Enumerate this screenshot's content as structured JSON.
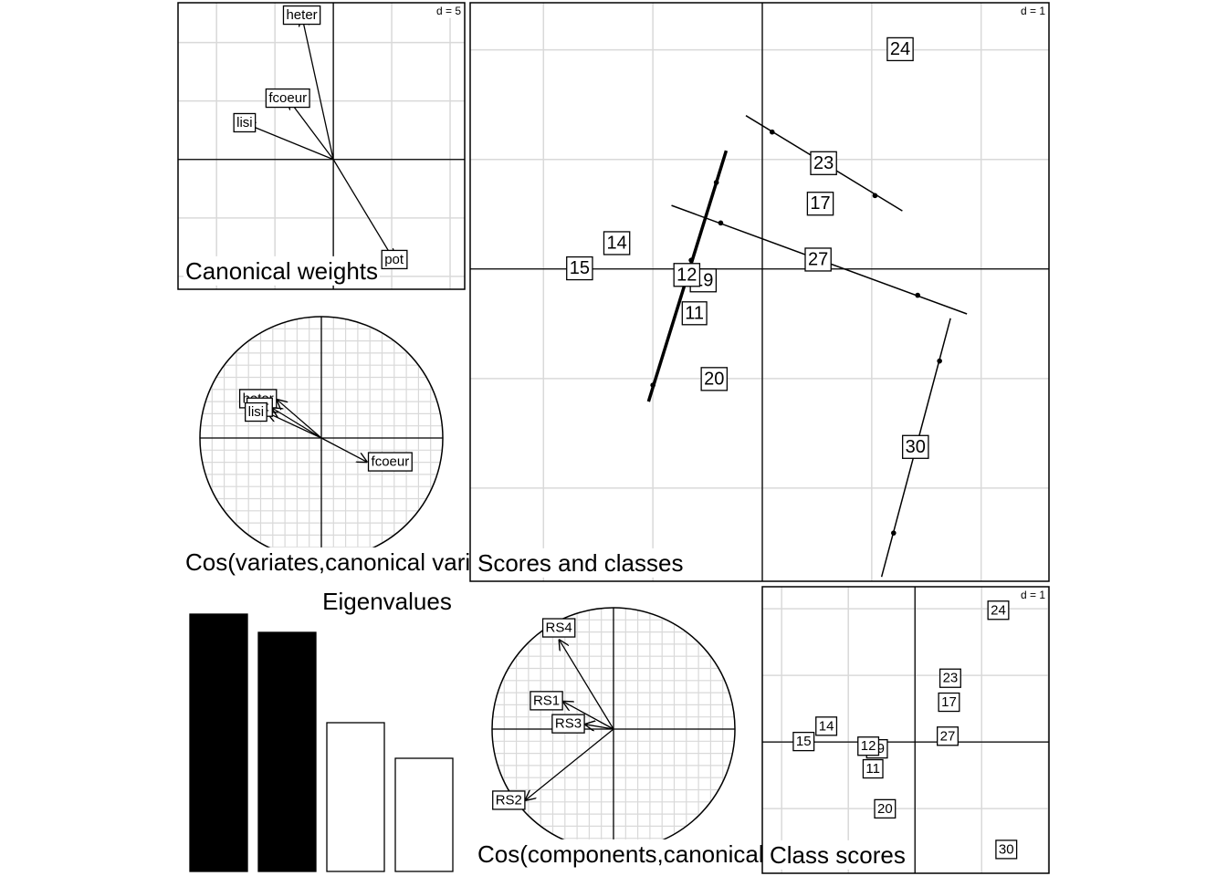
{
  "chart_data": [
    {
      "type": "arrows",
      "title": "Canonical weights",
      "grid": {
        "value": 5,
        "label": "d = 5"
      },
      "xlim": [
        -13.3,
        11.25
      ],
      "ylim": [
        -11.1,
        13.4
      ],
      "labels": [
        "heter",
        "fcoeur",
        "lisi",
        "pot"
      ],
      "x": [
        -2.7,
        -3.9,
        -7.6,
        5.2
      ],
      "y": [
        12.3,
        5.2,
        3.1,
        -8.6
      ]
    },
    {
      "type": "circle",
      "title": "Cos(variates,canonical variates)",
      "labels": [
        "heter",
        "pot",
        "lisi",
        "fcoeur"
      ],
      "x": [
        -0.37,
        -0.41,
        -0.45,
        0.38
      ],
      "y": [
        0.32,
        0.25,
        0.21,
        -0.2
      ]
    },
    {
      "type": "labels",
      "title": "Scores and classes",
      "grid": {
        "value": 1,
        "label": "d = 1"
      },
      "xlim": [
        -2.67,
        2.62
      ],
      "ylim": [
        -2.85,
        2.43
      ],
      "labels": [
        "24",
        "23",
        "17",
        "27",
        "14",
        "15",
        "19",
        "12",
        "11",
        "20",
        "30"
      ],
      "x": [
        1.26,
        0.56,
        0.53,
        0.51,
        -1.33,
        -1.67,
        -0.54,
        -0.69,
        -0.62,
        -0.44,
        1.4
      ],
      "y": [
        2.0,
        0.96,
        0.59,
        0.08,
        0.23,
        0,
        -0.11,
        -0.06,
        -0.41,
        -1.01,
        -1.63
      ],
      "segments": [
        {
          "x": [
            -1.04,
            -0.33
          ],
          "y": [
            -1.21,
            1.08
          ]
        },
        {
          "x": [
            -0.83,
            1.87
          ],
          "y": [
            0.58,
            -0.41
          ]
        },
        {
          "x": [
            -0.15,
            1.28
          ],
          "y": [
            1.4,
            0.53
          ]
        },
        {
          "x": [
            1.09,
            1.72
          ],
          "y": [
            -2.81,
            -0.45
          ]
        }
      ],
      "line_widths": [
        3.5,
        1.5,
        1.5,
        1.5
      ],
      "points": {
        "x": [
          -0.42,
          -0.65,
          -1.0,
          -0.38,
          1.42,
          0.09,
          1.03,
          1.62,
          1.2
        ],
        "y": [
          0.79,
          0.08,
          -1.06,
          0.42,
          -0.24,
          1.25,
          0.67,
          -0.84,
          -2.41
        ]
      }
    },
    {
      "type": "bar",
      "title": "Eigenvalues",
      "values": [
        2.82,
        2.62,
        1.63,
        1.24
      ],
      "colors": [
        "#000000",
        "#000000",
        "#ffffff",
        "#ffffff"
      ],
      "ylim": [
        0,
        2.85
      ]
    },
    {
      "type": "circle",
      "title": "Cos(components,canonical variates)",
      "labels": [
        "RS4",
        "RS1",
        "RS3",
        "RS2"
      ],
      "x": [
        -0.45,
        -0.42,
        -0.24,
        -0.73
      ],
      "y": [
        0.74,
        0.23,
        0.04,
        -0.59
      ]
    },
    {
      "type": "labels",
      "title": "Class scores",
      "grid": {
        "value": 1,
        "label": "d = 1"
      },
      "xlim": [
        -2.29,
        2.01
      ],
      "ylim": [
        -1.97,
        2.33
      ],
      "labels": [
        "24",
        "23",
        "17",
        "27",
        "14",
        "15",
        "19",
        "12",
        "11",
        "20",
        "30"
      ],
      "x": [
        1.25,
        0.53,
        0.51,
        0.49,
        -1.33,
        -1.67,
        -0.57,
        -0.7,
        -0.63,
        -0.45,
        1.37
      ],
      "y": [
        1.97,
        0.95,
        0.59,
        0.08,
        0.23,
        0,
        -0.11,
        -0.07,
        -0.41,
        -1.01,
        -1.62
      ]
    }
  ]
}
